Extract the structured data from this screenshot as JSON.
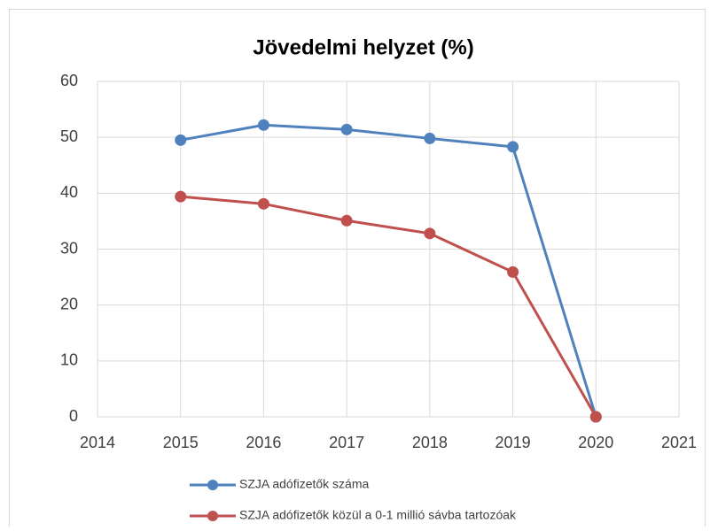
{
  "chart_data": {
    "type": "line",
    "title": "Jövedelmi helyzet (%)",
    "x": [
      2015,
      2016,
      2017,
      2018,
      2019,
      2020
    ],
    "series": [
      {
        "name": "SZJA adófizetők száma",
        "color": "#4f81bd",
        "values": [
          49.5,
          52.2,
          51.4,
          49.8,
          48.3,
          0
        ]
      },
      {
        "name": "SZJA adófizetők közül a 0-1 millió sávba tartozóak",
        "color": "#c0504d",
        "values": [
          39.4,
          38.1,
          35.1,
          32.8,
          25.9,
          0
        ]
      }
    ],
    "xlim": [
      2014,
      2021
    ],
    "xticks": [
      2014,
      2015,
      2016,
      2017,
      2018,
      2019,
      2020,
      2021
    ],
    "ylim": [
      0,
      60
    ],
    "yticks": [
      0,
      10,
      20,
      30,
      40,
      50,
      60
    ],
    "grid": true
  }
}
